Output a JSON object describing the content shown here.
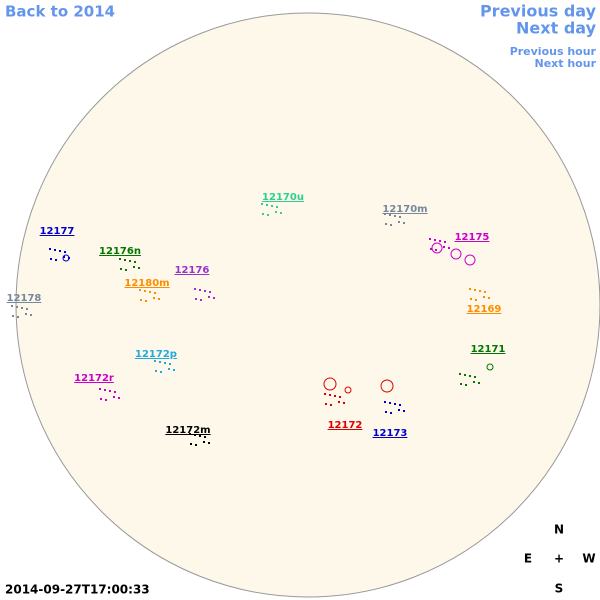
{
  "nav": {
    "back": "Back to 2014",
    "previous_day": "Previous day",
    "next_day": "Next day",
    "previous_hour": "Previous hour",
    "next_hour": "Next hour"
  },
  "regions": [
    {
      "label": "12170u",
      "color": "#2fcf8f"
    },
    {
      "label": "12170m",
      "color": "#778899"
    },
    {
      "label": "12177",
      "color": "#0000cc"
    },
    {
      "label": "12176n",
      "color": "#007700"
    },
    {
      "label": "12175",
      "color": "#cc00cc"
    },
    {
      "label": "12176",
      "color": "#9933cc"
    },
    {
      "label": "12180m",
      "color": "#ff8c00"
    },
    {
      "label": "12178",
      "color": "#778899"
    },
    {
      "label": "12169",
      "color": "#ff8c00"
    },
    {
      "label": "12171",
      "color": "#007700"
    },
    {
      "label": "12172p",
      "color": "#22aadd"
    },
    {
      "label": "12172r",
      "color": "#cc00cc"
    },
    {
      "label": "12172",
      "color": "#dd0000"
    },
    {
      "label": "12173",
      "color": "#0000cc"
    },
    {
      "label": "12172m",
      "color": "#000000"
    }
  ],
  "timestamp": "2014-09-27T17:00:33",
  "compass": {
    "north": "N",
    "east": "E",
    "center": "+",
    "west": "W",
    "south": "S"
  }
}
